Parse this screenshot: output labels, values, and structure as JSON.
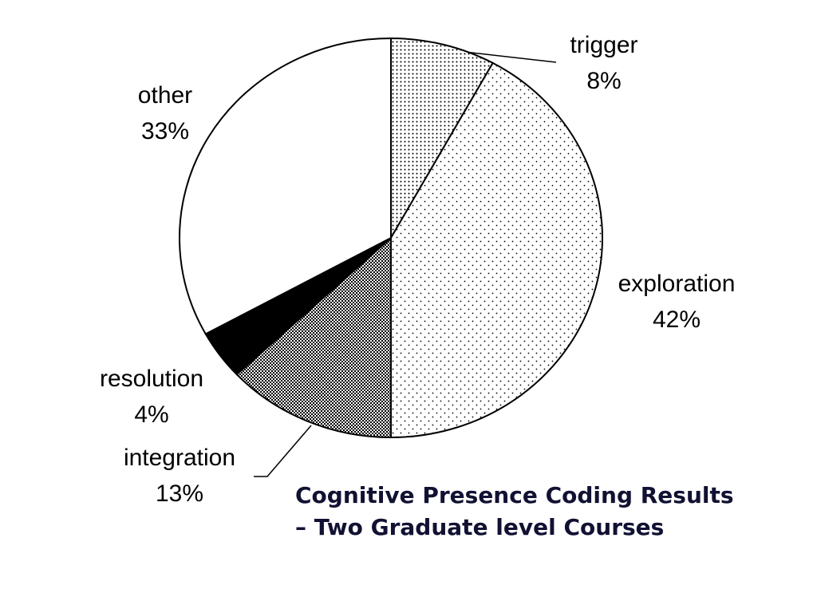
{
  "chart_data": {
    "type": "pie",
    "title": [
      "Cognitive Presence Coding Results",
      "–  Two Graduate level Courses"
    ],
    "categories": [
      "trigger",
      "exploration",
      "integration",
      "resolution",
      "other"
    ],
    "values": [
      8,
      42,
      13,
      4,
      33
    ],
    "value_labels": [
      "8%",
      "42%",
      "13%",
      "4%",
      "33%"
    ]
  }
}
